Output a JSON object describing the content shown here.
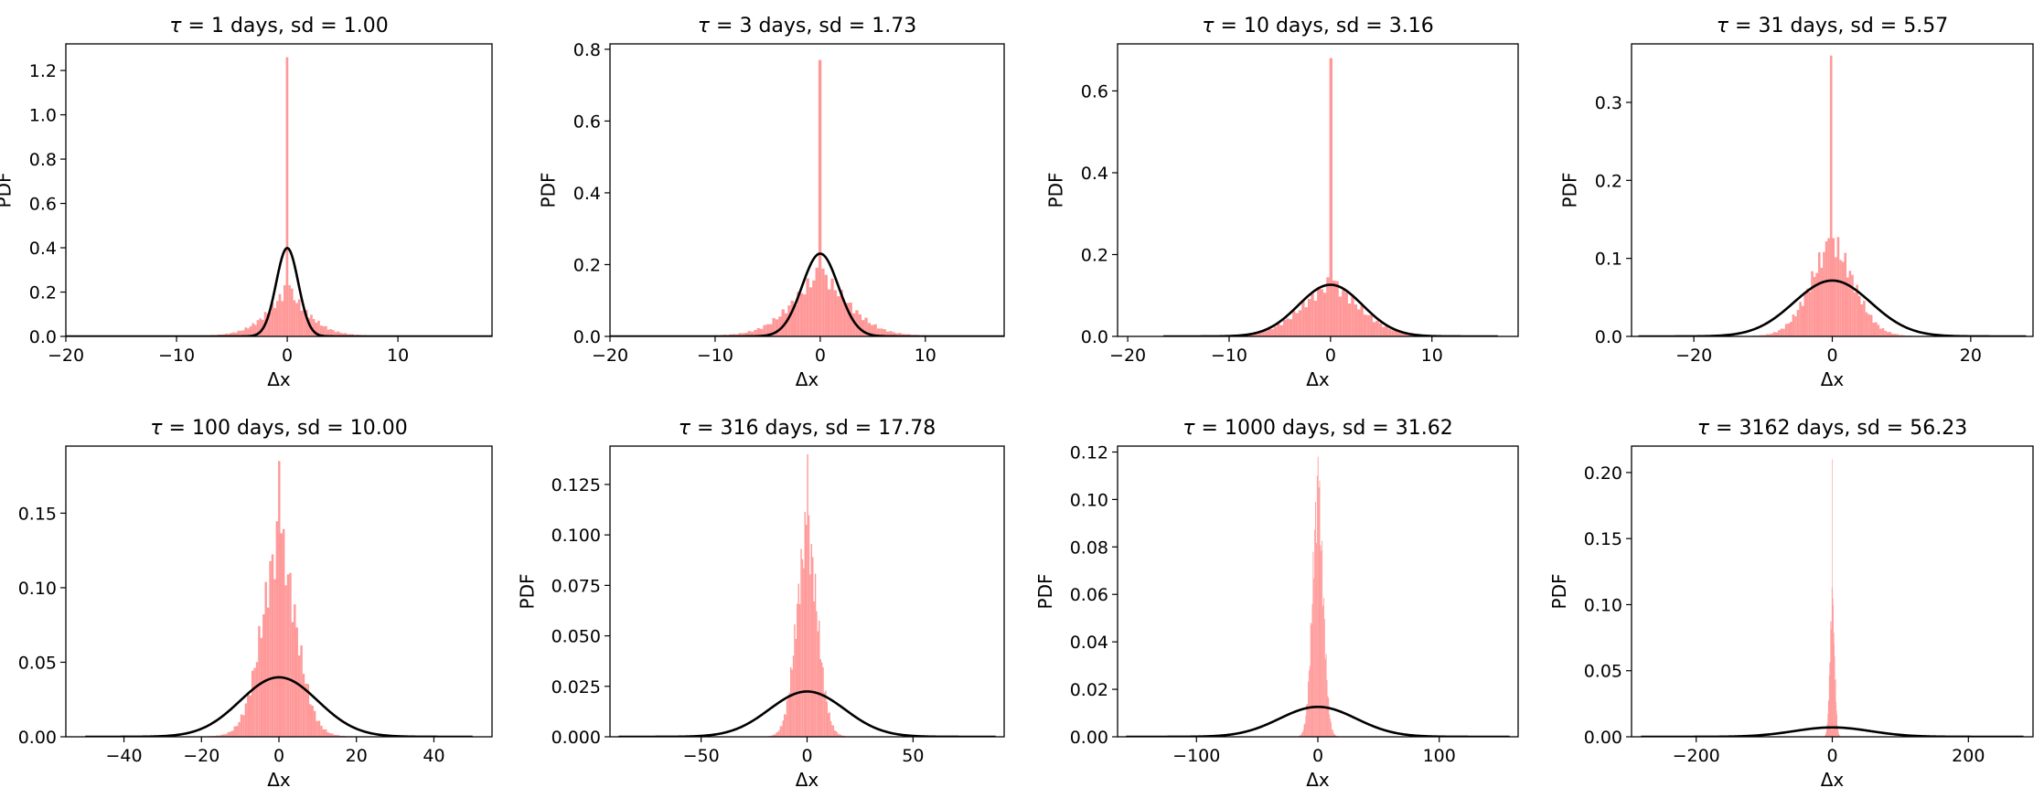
{
  "chart_data": [
    {
      "type": "histogram+line",
      "title": "τ = 1 days, sd = 1.00",
      "title_prefix": "τ",
      "title_rest": " = 1 days, sd = 1.00",
      "tau_days": 1,
      "sd": 1.0,
      "xlabel": "Δx",
      "ylabel": "PDF",
      "xlim": [
        -20,
        18.5
      ],
      "ylim": [
        0,
        1.32
      ],
      "xticks": [
        -20,
        -10,
        0,
        10
      ],
      "xtick_labels": [
        "−20",
        "−10",
        "0",
        "10"
      ],
      "yticks": [
        0,
        0.2,
        0.4,
        0.6,
        0.8,
        1.0,
        1.2
      ],
      "ytick_labels": [
        "0.0",
        "0.2",
        "0.4",
        "0.6",
        "0.8",
        "1.0",
        "1.2"
      ],
      "hist": {
        "center": 0,
        "hw": 2.0,
        "tail": 0.7,
        "range": [
          -10,
          8
        ],
        "base": 0.22,
        "spike": 1.26,
        "bins": 82
      },
      "normal_pdf": {
        "mean": 0,
        "sd": 1.0,
        "range": [
          -20,
          18.5
        ]
      }
    },
    {
      "type": "histogram+line",
      "title": "τ = 3 days, sd = 1.73",
      "title_prefix": "τ",
      "title_rest": " = 3 days, sd = 1.73",
      "tau_days": 3,
      "sd": 1.73,
      "xlabel": "Δx",
      "ylabel": "PDF",
      "xlim": [
        -20,
        17.5
      ],
      "ylim": [
        0,
        0.815
      ],
      "xticks": [
        -20,
        -10,
        0,
        10
      ],
      "xtick_labels": [
        "−20",
        "−10",
        "0",
        "10"
      ],
      "yticks": [
        0,
        0.2,
        0.4,
        0.6,
        0.8
      ],
      "ytick_labels": [
        "0.0",
        "0.2",
        "0.4",
        "0.6",
        "0.8"
      ],
      "hist": {
        "center": 0,
        "hw": 2.8,
        "tail": 0.5,
        "range": [
          -11,
          13
        ],
        "base": 0.18,
        "spike": 0.77,
        "bins": 82
      },
      "normal_pdf": {
        "mean": 0,
        "sd": 1.73,
        "range": [
          -20,
          17.5
        ]
      }
    },
    {
      "type": "histogram+line",
      "title": "τ = 10 days, sd = 3.16",
      "title_prefix": "τ",
      "title_rest": " = 10 days, sd = 3.16",
      "tau_days": 10,
      "sd": 3.16,
      "xlabel": "Δx",
      "ylabel": "PDF",
      "xlim": [
        -21,
        18.5
      ],
      "ylim": [
        0,
        0.715
      ],
      "xticks": [
        -20,
        -10,
        0,
        10
      ],
      "xtick_labels": [
        "−20",
        "−10",
        "0",
        "10"
      ],
      "yticks": [
        0,
        0.2,
        0.4,
        0.6
      ],
      "ytick_labels": [
        "0.0",
        "0.2",
        "0.4",
        "0.6"
      ],
      "hist": {
        "center": 0,
        "hw": 3.0,
        "tail": 0.35,
        "range": [
          -12,
          13
        ],
        "base": 0.13,
        "spike": 0.68,
        "bins": 82
      },
      "normal_pdf": {
        "mean": 0,
        "sd": 3.16,
        "range": [
          -16.5,
          16.5
        ]
      }
    },
    {
      "type": "histogram+line",
      "title": "τ = 31 days, sd = 5.57",
      "title_prefix": "τ",
      "title_rest": " = 31 days, sd = 5.57",
      "tau_days": 31,
      "sd": 5.57,
      "xlabel": "Δx",
      "ylabel": "PDF",
      "xlim": [
        -29,
        29
      ],
      "ylim": [
        0,
        0.375
      ],
      "xticks": [
        -20,
        0,
        20
      ],
      "xtick_labels": [
        "−20",
        "0",
        "20"
      ],
      "yticks": [
        0,
        0.1,
        0.2,
        0.3
      ],
      "ytick_labels": [
        "0.0",
        "0.1",
        "0.2",
        "0.3"
      ],
      "hist": {
        "center": 0,
        "hw": 3.2,
        "tail": 0.2,
        "range": [
          -14,
          14
        ],
        "base": 0.12,
        "spike": 0.36,
        "bins": 82
      },
      "normal_pdf": {
        "mean": 0,
        "sd": 5.57,
        "range": [
          -28,
          28
        ]
      }
    },
    {
      "type": "histogram+line",
      "title": "τ = 100 days, sd = 10.00",
      "title_prefix": "τ",
      "title_rest": " = 100 days, sd = 10.00",
      "tau_days": 100,
      "sd": 10.0,
      "xlabel": "Δx",
      "ylabel": "PDF",
      "xlim": [
        -55,
        55
      ],
      "ylim": [
        0,
        0.195
      ],
      "xticks": [
        -40,
        -20,
        0,
        20,
        40
      ],
      "xtick_labels": [
        "−40",
        "−20",
        "0",
        "20",
        "40"
      ],
      "yticks": [
        0,
        0.05,
        0.1,
        0.15
      ],
      "ytick_labels": [
        "0.00",
        "0.05",
        "0.10",
        "0.15"
      ],
      "hist": {
        "center": 0,
        "hw": 4.5,
        "tail": 0.15,
        "range": [
          -22,
          25
        ],
        "base": 0.13,
        "spike": 0.185,
        "bins": 82
      },
      "normal_pdf": {
        "mean": 0,
        "sd": 10.0,
        "range": [
          -50,
          50
        ]
      }
    },
    {
      "type": "histogram+line",
      "title": "τ = 316 days, sd = 17.78",
      "title_prefix": "τ",
      "title_rest": " = 316 days, sd = 17.78",
      "tau_days": 316,
      "sd": 17.78,
      "xlabel": "Δx",
      "ylabel": "PDF",
      "xlim": [
        -93,
        93
      ],
      "ylim": [
        0,
        0.144
      ],
      "xticks": [
        -50,
        0,
        50
      ],
      "xtick_labels": [
        "−50",
        "0",
        "50"
      ],
      "yticks": [
        0,
        0.025,
        0.05,
        0.075,
        0.1,
        0.125
      ],
      "ytick_labels": [
        "0.000",
        "0.025",
        "0.050",
        "0.075",
        "0.100",
        "0.125"
      ],
      "hist": {
        "center": 0,
        "hw": 5.0,
        "tail": 0.08,
        "range": [
          -22,
          28
        ],
        "base": 0.1,
        "spike": 0.14,
        "bins": 82
      },
      "normal_pdf": {
        "mean": 0,
        "sd": 17.78,
        "range": [
          -89,
          89
        ]
      }
    },
    {
      "type": "histogram+line",
      "title": "τ = 1000 days, sd = 31.62",
      "title_prefix": "τ",
      "title_rest": " = 1000 days, sd = 31.62",
      "tau_days": 1000,
      "sd": 31.62,
      "xlabel": "Δx",
      "ylabel": "PDF",
      "xlim": [
        -165,
        165
      ],
      "ylim": [
        0,
        0.1225
      ],
      "xticks": [
        -100,
        0,
        100
      ],
      "xtick_labels": [
        "−100",
        "0",
        "100"
      ],
      "yticks": [
        0,
        0.02,
        0.04,
        0.06,
        0.08,
        0.1,
        0.12
      ],
      "ytick_labels": [
        "0.00",
        "0.02",
        "0.04",
        "0.06",
        "0.08",
        "0.10",
        "0.12"
      ],
      "hist": {
        "center": 0,
        "hw": 4.5,
        "tail": 0.03,
        "range": [
          -25,
          30
        ],
        "base": 0.1,
        "spike": 0.118,
        "bins": 82
      },
      "normal_pdf": {
        "mean": 0,
        "sd": 31.62,
        "range": [
          -158,
          158
        ]
      }
    },
    {
      "type": "histogram+line",
      "title": "τ = 3162 days, sd = 56.23",
      "title_prefix": "τ",
      "title_rest": " = 3162 days, sd = 56.23",
      "tau_days": 3162,
      "sd": 56.23,
      "xlabel": "Δx",
      "ylabel": "PDF",
      "xlim": [
        -295,
        295
      ],
      "ylim": [
        0,
        0.22
      ],
      "xticks": [
        -200,
        0,
        200
      ],
      "xtick_labels": [
        "−200",
        "0",
        "200"
      ],
      "yticks": [
        0,
        0.05,
        0.1,
        0.15,
        0.2
      ],
      "ytick_labels": [
        "0.00",
        "0.05",
        "0.10",
        "0.15",
        "0.20"
      ],
      "hist": {
        "center": 0,
        "hw": 3.5,
        "tail": 0.02,
        "range": [
          -25,
          30
        ],
        "base": 0.1,
        "spike": 0.21,
        "bins": 82
      },
      "normal_pdf": {
        "mean": 0,
        "sd": 56.23,
        "range": [
          -281,
          281
        ]
      }
    }
  ],
  "colors": {
    "hist": "#ff9999",
    "curve": "#000000",
    "axes": "#000000",
    "background": "#ffffff"
  }
}
